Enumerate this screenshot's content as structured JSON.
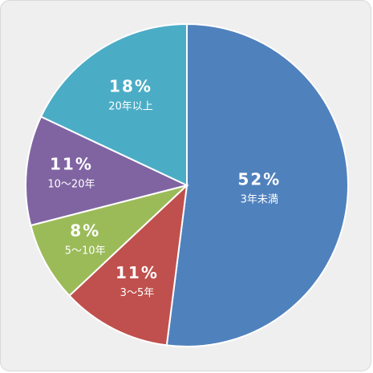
{
  "chart_data": {
    "type": "pie",
    "slices": [
      {
        "label": "3年未満",
        "value": 52,
        "value_label": "52%",
        "color": "#4f81bd"
      },
      {
        "label": "3～5年",
        "value": 11,
        "value_label": "11%",
        "color": "#c0504d"
      },
      {
        "label": "5～10年",
        "value": 8,
        "value_label": "8%",
        "color": "#9bbb59"
      },
      {
        "label": "10～20年",
        "value": 11,
        "value_label": "11%",
        "color": "#8064a2"
      },
      {
        "label": "20年以上",
        "value": 18,
        "value_label": "18%",
        "color": "#4bacc6"
      }
    ]
  }
}
